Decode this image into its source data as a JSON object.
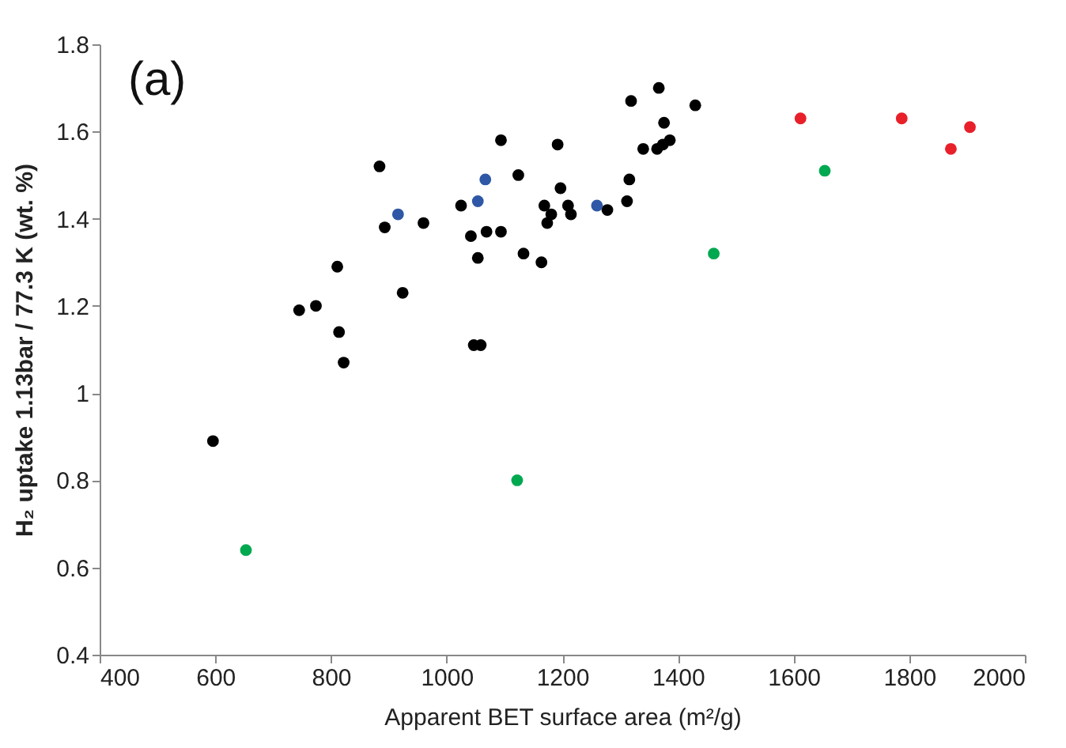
{
  "chart_data": {
    "type": "scatter",
    "xlabel": "Apparent BET surface area (m²/g)",
    "ylabel": "H₂ uptake 1.13bar / 77.3 K (wt. %)",
    "annotations": [
      "(a)"
    ],
    "xlim": [
      400,
      2000
    ],
    "xticks": [
      400,
      600,
      800,
      1000,
      1200,
      1400,
      1600,
      1800,
      2000
    ],
    "ylim": [
      0.4,
      1.8
    ],
    "yticks": [
      0.4,
      0.6,
      0.8,
      1,
      1.2,
      1.4,
      1.6,
      1.8
    ],
    "grid": false,
    "series": [
      {
        "color": "#000000",
        "x": [
          1094,
          1192,
          884,
          1124,
          1197,
          1025,
          1169,
          1210,
          1181,
          1215,
          1174,
          893,
          960,
          1042,
          1069,
          1094,
          1054,
          1133,
          1164,
          811,
          924,
          774,
          745,
          814,
          1047,
          1059,
          596,
          822,
          1367,
          1319,
          1430,
          1376,
          1340,
          1364,
          1386,
          1374,
          1316,
          1312,
          1278
        ],
        "values": [
          1.58,
          1.57,
          1.52,
          1.5,
          1.47,
          1.43,
          1.43,
          1.43,
          1.41,
          1.41,
          1.39,
          1.38,
          1.39,
          1.36,
          1.37,
          1.37,
          1.31,
          1.32,
          1.3,
          1.29,
          1.23,
          1.2,
          1.19,
          1.14,
          1.11,
          1.11,
          0.89,
          1.07,
          1.7,
          1.67,
          1.66,
          1.62,
          1.56,
          1.56,
          1.58,
          1.57,
          1.49,
          1.44,
          1.42
        ]
      },
      {
        "color": "#2e58a6",
        "x": [
          1067,
          1054,
          916,
          1260
        ],
        "values": [
          1.49,
          1.44,
          1.41,
          1.43
        ]
      },
      {
        "color": "#e8202a",
        "x": [
          1612,
          1787,
          1905,
          1872
        ],
        "values": [
          1.63,
          1.63,
          1.61,
          1.56
        ]
      },
      {
        "color": "#00a850",
        "x": [
          1654,
          1462,
          653,
          1122
        ],
        "values": [
          1.51,
          1.32,
          0.64,
          0.8
        ]
      }
    ]
  }
}
